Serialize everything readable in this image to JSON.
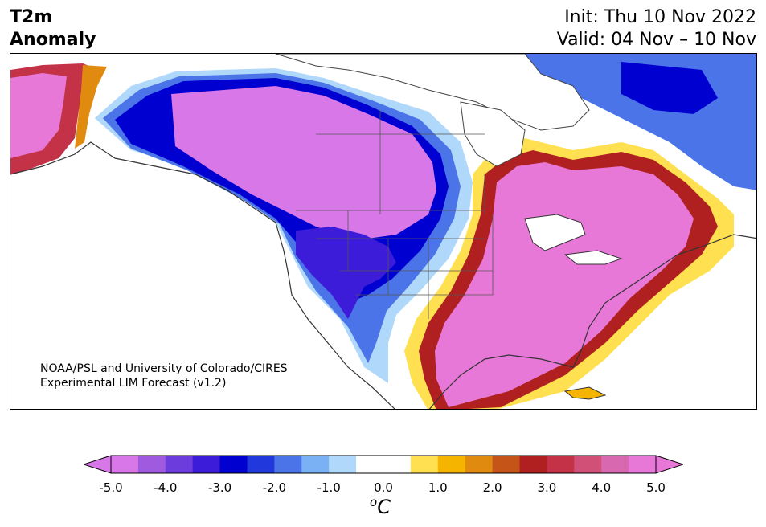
{
  "header": {
    "variable": "T2m",
    "quantity": "Anomaly",
    "init": "Init: Thu 10 Nov 2022",
    "valid": "Valid: 04 Nov – 10 Nov"
  },
  "map": {
    "credit_line1": "NOAA/PSL and University of Colorado/CIRES",
    "credit_line2": "Experimental LIM Forecast (v1.2)"
  },
  "colorbar": {
    "ticks": [
      "-5.0",
      "-4.0",
      "-3.0",
      "-2.0",
      "-1.0",
      "0.0",
      "1.0",
      "2.0",
      "3.0",
      "4.0",
      "5.0"
    ],
    "unit_base": "C",
    "unit_sup": "o",
    "under_color": "#d878e8",
    "over_color": "#e878d8",
    "colors": [
      "#d878e8",
      "#a05ae0",
      "#6c3cdc",
      "#3c1cd8",
      "#0000d0",
      "#2038dc",
      "#4a74e8",
      "#7ab0f4",
      "#b0d8fa",
      "#ffffff",
      "#ffffff",
      "#ffe050",
      "#f4b400",
      "#e08a10",
      "#c45418",
      "#b02020",
      "#c43248",
      "#d05078",
      "#d868b0",
      "#e878d8"
    ]
  }
}
